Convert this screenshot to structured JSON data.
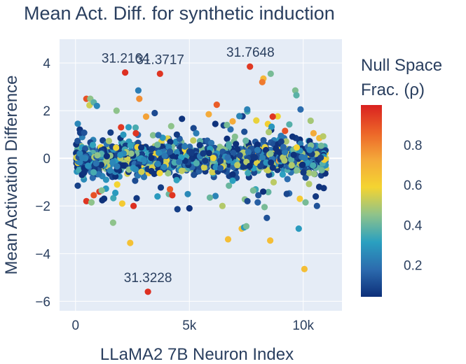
{
  "chart_data": {
    "type": "scatter",
    "title": "Mean Act. Diff. for synthetic induction",
    "xlabel": "LLaMA2 7B Neuron Index",
    "ylabel": "Mean Activation Difference",
    "xlim": [
      -700,
      11700
    ],
    "ylim": [
      -6.4,
      5.0
    ],
    "x_ticks": [
      0,
      5000,
      10000
    ],
    "x_tick_labels": [
      "0",
      "5k",
      "10k"
    ],
    "y_ticks": [
      4,
      2,
      0,
      -2,
      -4,
      -6
    ],
    "y_tick_labels": [
      "4",
      "2",
      "0",
      "−2",
      "−4",
      "−6"
    ],
    "grid": true,
    "colorbar": {
      "title_lines": [
        "Null Space",
        "Frac. (ρ)"
      ],
      "range": [
        0.04,
        1.0
      ],
      "ticks": [
        0.8,
        0.6,
        0.4,
        0.2
      ],
      "tick_labels": [
        "0.8",
        "0.6",
        "0.4",
        "0.2"
      ],
      "colorscale": [
        "#0d2f79",
        "#2c6bae",
        "#2aa0c0",
        "#8fc38a",
        "#f4d431",
        "#f4a93a",
        "#ec6428",
        "#d92120"
      ]
    },
    "annotations": [
      {
        "text": "31.2164",
        "x": 2200,
        "y": 3.6
      },
      {
        "text": "31.3717",
        "x": 3720,
        "y": 3.55
      },
      {
        "text": "31.7648",
        "x": 7680,
        "y": 3.85
      },
      {
        "text": "31.3228",
        "x": 3180,
        "y": -5.6
      }
    ],
    "highlight_points": [
      {
        "x": 2180,
        "y": 3.6,
        "c": 0.97
      },
      {
        "x": 3710,
        "y": 3.55,
        "c": 0.96
      },
      {
        "x": 7660,
        "y": 3.85,
        "c": 0.95
      },
      {
        "x": 3180,
        "y": -5.6,
        "c": 0.97
      },
      {
        "x": 8570,
        "y": 3.55,
        "c": 0.42
      },
      {
        "x": 8250,
        "y": 3.35,
        "c": 0.68
      },
      {
        "x": 8200,
        "y": 3.2,
        "c": 0.82
      },
      {
        "x": 2760,
        "y": 2.85,
        "c": 0.22
      },
      {
        "x": 9650,
        "y": 2.85,
        "c": 0.43
      },
      {
        "x": 9700,
        "y": 2.65,
        "c": 0.38
      },
      {
        "x": 2800,
        "y": 2.5,
        "c": 0.78
      },
      {
        "x": 480,
        "y": 2.5,
        "c": 0.9
      },
      {
        "x": 650,
        "y": 2.5,
        "c": 0.45
      },
      {
        "x": 800,
        "y": 2.35,
        "c": 0.38
      },
      {
        "x": 940,
        "y": 2.2,
        "c": 0.25
      },
      {
        "x": 6200,
        "y": 2.25,
        "c": 0.88
      },
      {
        "x": 9880,
        "y": 2.05,
        "c": 0.18
      },
      {
        "x": 1800,
        "y": 2.0,
        "c": 0.45
      },
      {
        "x": 7540,
        "y": 2.05,
        "c": 0.24
      },
      {
        "x": 5850,
        "y": 1.85,
        "c": 0.72
      },
      {
        "x": 8660,
        "y": 1.75,
        "c": 0.96
      },
      {
        "x": 3100,
        "y": 1.75,
        "c": 0.74
      },
      {
        "x": 3480,
        "y": 1.9,
        "c": 0.1
      },
      {
        "x": 100,
        "y": 1.45,
        "c": 0.25
      },
      {
        "x": 2000,
        "y": 1.3,
        "c": 0.95
      },
      {
        "x": 2650,
        "y": 1.05,
        "c": 0.96
      },
      {
        "x": 4200,
        "y": 1.35,
        "c": 0.45
      },
      {
        "x": 6900,
        "y": 1.55,
        "c": 0.72
      },
      {
        "x": 100,
        "y": -1.15,
        "c": 0.08
      },
      {
        "x": 480,
        "y": -1.8,
        "c": 0.96
      },
      {
        "x": 700,
        "y": -1.85,
        "c": 0.45
      },
      {
        "x": 800,
        "y": -1.55,
        "c": 0.9
      },
      {
        "x": 1050,
        "y": -1.4,
        "c": 0.95
      },
      {
        "x": 1150,
        "y": -1.35,
        "c": 0.44
      },
      {
        "x": 1650,
        "y": -2.7,
        "c": 0.45
      },
      {
        "x": 1750,
        "y": -1.45,
        "c": 0.3
      },
      {
        "x": 2050,
        "y": -1.9,
        "c": 0.62
      },
      {
        "x": 2400,
        "y": -3.55,
        "c": 0.65
      },
      {
        "x": 2550,
        "y": -2.0,
        "c": 0.97
      },
      {
        "x": 3600,
        "y": -1.6,
        "c": 0.3
      },
      {
        "x": 4100,
        "y": -1.5,
        "c": 0.4
      },
      {
        "x": 4150,
        "y": -1.3,
        "c": 0.88
      },
      {
        "x": 4250,
        "y": -1.55,
        "c": 0.96
      },
      {
        "x": 5000,
        "y": -2.1,
        "c": 0.05
      },
      {
        "x": 5900,
        "y": -1.65,
        "c": 0.4
      },
      {
        "x": 6450,
        "y": -2.0,
        "c": 0.5
      },
      {
        "x": 6700,
        "y": -3.4,
        "c": 0.66
      },
      {
        "x": 7300,
        "y": -2.95,
        "c": 0.66
      },
      {
        "x": 7400,
        "y": -2.9,
        "c": 0.3
      },
      {
        "x": 7500,
        "y": -2.85,
        "c": 0.42
      },
      {
        "x": 7550,
        "y": -1.8,
        "c": 0.1
      },
      {
        "x": 7800,
        "y": -1.35,
        "c": 0.42
      },
      {
        "x": 8000,
        "y": -1.85,
        "c": 0.15
      },
      {
        "x": 8300,
        "y": -2.05,
        "c": 0.42
      },
      {
        "x": 8400,
        "y": -2.5,
        "c": 0.12
      },
      {
        "x": 8550,
        "y": -3.45,
        "c": 0.66
      },
      {
        "x": 9800,
        "y": -2.95,
        "c": 0.3
      },
      {
        "x": 9850,
        "y": -1.7,
        "c": 0.62
      },
      {
        "x": 10050,
        "y": -4.65,
        "c": 0.66
      },
      {
        "x": 10100,
        "y": -1.85,
        "c": 0.42
      },
      {
        "x": 10550,
        "y": -1.6,
        "c": 0.06
      },
      {
        "x": 10700,
        "y": -1.2,
        "c": 0.05
      },
      {
        "x": 10900,
        "y": -1.25,
        "c": 0.05
      },
      {
        "x": 10600,
        "y": -2.0,
        "c": 0.12
      },
      {
        "x": 5300,
        "y": 1.05,
        "c": 0.22
      },
      {
        "x": 6650,
        "y": 1.4,
        "c": 0.42
      },
      {
        "x": 9200,
        "y": 1.15,
        "c": 0.9
      },
      {
        "x": 10450,
        "y": 1.05,
        "c": 0.72
      }
    ],
    "bulk": {
      "x_range": [
        0,
        11000
      ],
      "count": 1400,
      "spread": 0.32,
      "seed": 17
    }
  }
}
